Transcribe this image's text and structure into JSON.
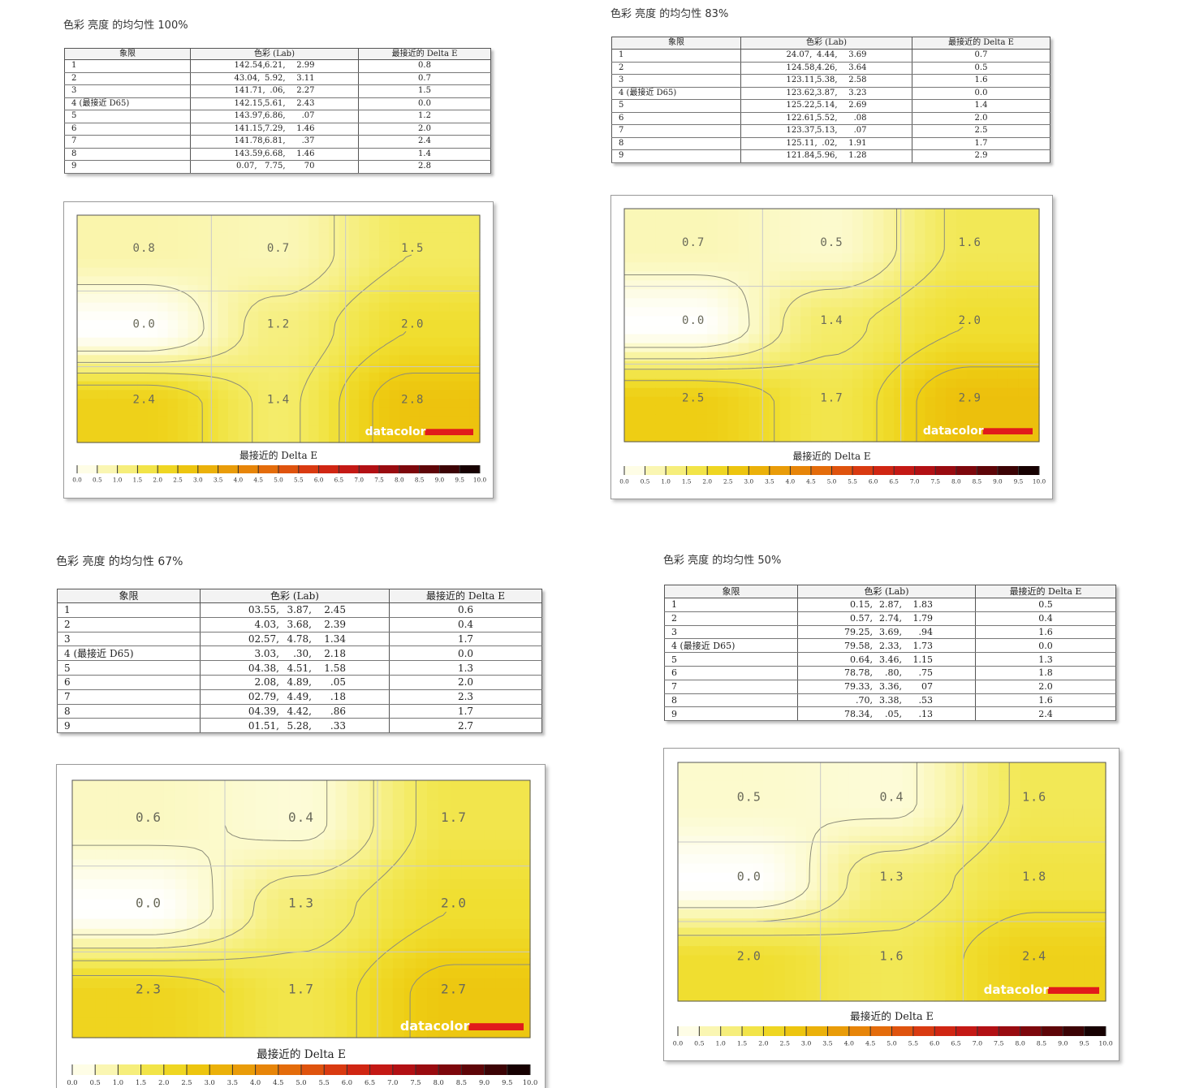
{
  "panels": [
    {
      "id": "p100",
      "title": "色彩 亮度 的均匀性 100%",
      "table": {
        "headers": [
          "象限",
          "色彩 (Lab)",
          "最接近的 Delta E"
        ],
        "rows": [
          [
            "1",
            "142.54,",
            "6.21,",
            "2.99",
            "0.8"
          ],
          [
            "2",
            "43.04,",
            "5.92,",
            "3.11",
            "0.7"
          ],
          [
            "3",
            "141.71,",
            ".06,",
            "2.27",
            "1.5"
          ],
          [
            "4 (最接近 D65)",
            "142.15,",
            "5.61,",
            "2.43",
            "0.0"
          ],
          [
            "5",
            "143.97,",
            "6.86,",
            ".07",
            "1.2"
          ],
          [
            "6",
            "141.15,",
            "7.29,",
            "1.46",
            "2.0"
          ],
          [
            "7",
            "141.78,",
            "6.81,",
            ".37",
            "2.4"
          ],
          [
            "8",
            "143.59,",
            "6.68,",
            "1.46",
            "1.4"
          ],
          [
            "9",
            "0.07,",
            "7.75,",
            "70",
            "2.8"
          ]
        ]
      },
      "chart_data": {
        "type": "heatmap",
        "grid": {
          "rows": 3,
          "cols": 3
        },
        "values": [
          [
            0.8,
            0.7,
            1.5
          ],
          [
            0.0,
            1.2,
            2.0
          ],
          [
            2.4,
            1.4,
            2.8
          ]
        ],
        "colorbar": {
          "label": "最接近的 Delta E",
          "range": [
            0.0,
            10.0
          ],
          "step": 0.5
        },
        "logo": "datacolor"
      }
    },
    {
      "id": "p83",
      "title": "色彩 亮度 的均匀性 83%",
      "table": {
        "headers": [
          "象限",
          "色彩 (Lab)",
          "最接近的 Delta E"
        ],
        "rows": [
          [
            "1",
            "24.07,",
            "4.44,",
            "3.69",
            "0.7"
          ],
          [
            "2",
            "124.58,",
            "4.26,",
            "3.64",
            "0.5"
          ],
          [
            "3",
            "123.11,",
            "5.38,",
            "2.58",
            "1.6"
          ],
          [
            "4 (最接近 D65)",
            "123.62,",
            "3.87,",
            "3.23",
            "0.0"
          ],
          [
            "5",
            "125.22,",
            "5.14,",
            "2.69",
            "1.4"
          ],
          [
            "6",
            "122.61,",
            "5.52,",
            ".08",
            "2.0"
          ],
          [
            "7",
            "123.37,",
            "5.13,",
            ".07",
            "2.5"
          ],
          [
            "8",
            "125.11,",
            ".02,",
            "1.91",
            "1.7"
          ],
          [
            "9",
            "121.84,",
            "5.96,",
            "1.28",
            "2.9"
          ]
        ]
      },
      "chart_data": {
        "type": "heatmap",
        "grid": {
          "rows": 3,
          "cols": 3
        },
        "values": [
          [
            0.7,
            0.5,
            1.6
          ],
          [
            0.0,
            1.4,
            2.0
          ],
          [
            2.5,
            1.7,
            2.9
          ]
        ],
        "colorbar": {
          "label": "最接近的 Delta E",
          "range": [
            0.0,
            10.0
          ],
          "step": 0.5
        },
        "logo": "datacolor"
      }
    },
    {
      "id": "p67",
      "title": "色彩 亮度 的均匀性 67%",
      "table": {
        "headers": [
          "象限",
          "色彩 (Lab)",
          "最接近的 Delta E"
        ],
        "rows": [
          [
            "1",
            "03.55,",
            "3.87,",
            "2.45",
            "0.6"
          ],
          [
            "2",
            "4.03,",
            "3.68,",
            "2.39",
            "0.4"
          ],
          [
            "3",
            "02.57,",
            "4.78,",
            "1.34",
            "1.7"
          ],
          [
            "4 (最接近 D65)",
            "3.03,",
            ".30,",
            "2.18",
            "0.0"
          ],
          [
            "5",
            "04.38,",
            "4.51,",
            "1.58",
            "1.3"
          ],
          [
            "6",
            "2.08,",
            "4.89,",
            ".05",
            "2.0"
          ],
          [
            "7",
            "02.79,",
            "4.49,",
            ".18",
            "2.3"
          ],
          [
            "8",
            "04.39,",
            "4.42,",
            ".86",
            "1.7"
          ],
          [
            "9",
            "01.51,",
            "5.28,",
            ".33",
            "2.7"
          ]
        ]
      },
      "chart_data": {
        "type": "heatmap",
        "grid": {
          "rows": 3,
          "cols": 3
        },
        "values": [
          [
            0.6,
            0.4,
            1.7
          ],
          [
            0.0,
            1.3,
            2.0
          ],
          [
            2.3,
            1.7,
            2.7
          ]
        ],
        "colorbar": {
          "label": "最接近的 Delta E",
          "range": [
            0.0,
            10.0
          ],
          "step": 0.5
        },
        "logo": "datacolor"
      }
    },
    {
      "id": "p50",
      "title": "色彩 亮度 的均匀性 50%",
      "table": {
        "headers": [
          "象限",
          "色彩 (Lab)",
          "最接近的 Delta E"
        ],
        "rows": [
          [
            "1",
            "0.15,",
            "2.87,",
            "1.83",
            "0.5"
          ],
          [
            "2",
            "0.57,",
            "2.74,",
            "1.79",
            "0.4"
          ],
          [
            "3",
            "79.25,",
            "3.69,",
            ".94",
            "1.6"
          ],
          [
            "4 (最接近 D65)",
            "79.58,",
            "2.33,",
            "1.73",
            "0.0"
          ],
          [
            "5",
            "0.64,",
            "3.46,",
            "1.15",
            "1.3"
          ],
          [
            "6",
            "78.78,",
            ".80,",
            ".75",
            "1.8"
          ],
          [
            "7",
            "79.33,",
            "3.36,",
            "07",
            "2.0"
          ],
          [
            "8",
            ".70,",
            "3.38,",
            ".53",
            "1.6"
          ],
          [
            "9",
            "78.34,",
            ".05,",
            ".13",
            "2.4"
          ]
        ]
      },
      "chart_data": {
        "type": "heatmap",
        "grid": {
          "rows": 3,
          "cols": 3
        },
        "values": [
          [
            0.5,
            0.4,
            1.6
          ],
          [
            0.0,
            1.3,
            1.8
          ],
          [
            2.0,
            1.6,
            2.4
          ]
        ],
        "colorbar": {
          "label": "最接近的 Delta E",
          "range": [
            0.0,
            10.0
          ],
          "step": 0.5
        },
        "logo": "datacolor"
      }
    }
  ]
}
